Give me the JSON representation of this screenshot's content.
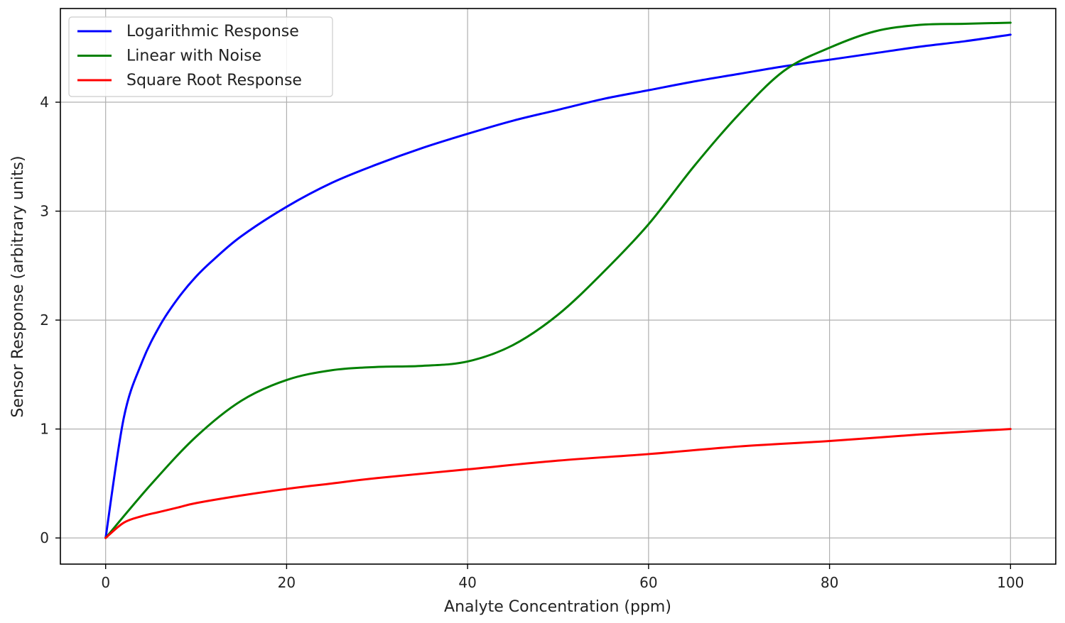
{
  "chart_data": {
    "type": "line",
    "title": "",
    "xlabel": "Analyte Concentration (ppm)",
    "ylabel": "Sensor Response (arbitrary units)",
    "xlim": [
      -5,
      105
    ],
    "ylim": [
      -0.24,
      4.86
    ],
    "xticks": [
      0,
      20,
      40,
      60,
      80,
      100
    ],
    "yticks": [
      0,
      1,
      2,
      3,
      4
    ],
    "grid": true,
    "legend_position": "top-left",
    "series": [
      {
        "name": "Logarithmic Response",
        "color": "#0000ff",
        "x": [
          0,
          2,
          4,
          6,
          8,
          10,
          12,
          15,
          20,
          25,
          30,
          35,
          40,
          45,
          50,
          55,
          60,
          65,
          70,
          75,
          80,
          85,
          90,
          95,
          100
        ],
        "y": [
          0,
          1.1,
          1.61,
          1.95,
          2.2,
          2.4,
          2.56,
          2.77,
          3.04,
          3.26,
          3.43,
          3.58,
          3.71,
          3.83,
          3.93,
          4.03,
          4.11,
          4.19,
          4.26,
          4.33,
          4.39,
          4.45,
          4.51,
          4.56,
          4.62
        ]
      },
      {
        "name": "Linear with Noise",
        "color": "#008000",
        "x": [
          0,
          5,
          10,
          15,
          20,
          25,
          30,
          35,
          40,
          45,
          50,
          55,
          60,
          65,
          70,
          75,
          80,
          85,
          90,
          95,
          100
        ],
        "y": [
          0,
          0.49,
          0.93,
          1.26,
          1.45,
          1.54,
          1.57,
          1.58,
          1.62,
          1.77,
          2.05,
          2.44,
          2.88,
          3.41,
          3.89,
          4.29,
          4.5,
          4.65,
          4.71,
          4.72,
          4.73
        ]
      },
      {
        "name": "Square Root Response",
        "color": "#ff0000",
        "x": [
          0,
          2,
          4,
          6,
          8,
          10,
          15,
          20,
          25,
          30,
          40,
          50,
          60,
          70,
          80,
          90,
          100
        ],
        "y": [
          0,
          0.14,
          0.2,
          0.24,
          0.28,
          0.32,
          0.39,
          0.45,
          0.5,
          0.55,
          0.63,
          0.71,
          0.77,
          0.84,
          0.89,
          0.95,
          1.0
        ]
      }
    ]
  }
}
